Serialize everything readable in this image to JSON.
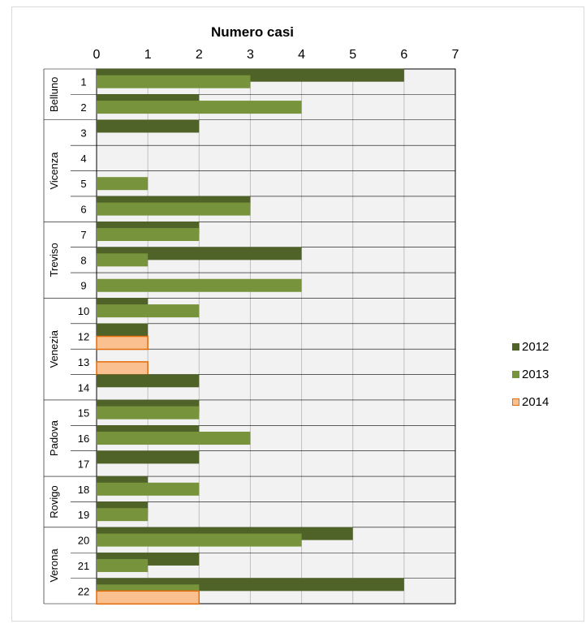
{
  "chart_data": {
    "type": "bar",
    "orientation": "horizontal",
    "title": "",
    "xlabel": "Numero casi",
    "ylabel": "",
    "xlim": [
      0,
      7
    ],
    "x_ticks": [
      "0",
      "1",
      "2",
      "3",
      "4",
      "5",
      "6",
      "7"
    ],
    "grid": true,
    "legend_position": "right",
    "groups": [
      {
        "name": "Belluno",
        "categories": [
          "1",
          "2"
        ]
      },
      {
        "name": "Vicenza",
        "categories": [
          "3",
          "4",
          "5",
          "6"
        ]
      },
      {
        "name": "Treviso",
        "categories": [
          "7",
          "8",
          "9"
        ]
      },
      {
        "name": "Venezia",
        "categories": [
          "10",
          "12",
          "13",
          "14"
        ]
      },
      {
        "name": "Padova",
        "categories": [
          "15",
          "16",
          "17"
        ]
      },
      {
        "name": "Rovigo",
        "categories": [
          "18",
          "19"
        ]
      },
      {
        "name": "Verona",
        "categories": [
          "20",
          "21",
          "22"
        ]
      }
    ],
    "categories": [
      "1",
      "2",
      "3",
      "4",
      "5",
      "6",
      "7",
      "8",
      "9",
      "10",
      "12",
      "13",
      "14",
      "15",
      "16",
      "17",
      "18",
      "19",
      "20",
      "21",
      "22"
    ],
    "series": [
      {
        "name": "2012",
        "color": "#4f6228",
        "values": [
          6,
          2,
          2,
          0,
          0,
          3,
          2,
          4,
          0,
          1,
          1,
          0,
          2,
          2,
          2,
          2,
          1,
          1,
          5,
          2,
          6
        ]
      },
      {
        "name": "2013",
        "color": "#77933c",
        "values": [
          3,
          4,
          0,
          0,
          1,
          3,
          2,
          1,
          4,
          2,
          0,
          0,
          0,
          2,
          3,
          0,
          2,
          1,
          4,
          1,
          2
        ]
      },
      {
        "name": "2014",
        "color": "#fac090",
        "border_color": "#e46c0a",
        "values": [
          0,
          0,
          0,
          0,
          0,
          0,
          0,
          0,
          0,
          0,
          1,
          1,
          0,
          0,
          0,
          0,
          0,
          0,
          0,
          0,
          2
        ]
      }
    ]
  }
}
